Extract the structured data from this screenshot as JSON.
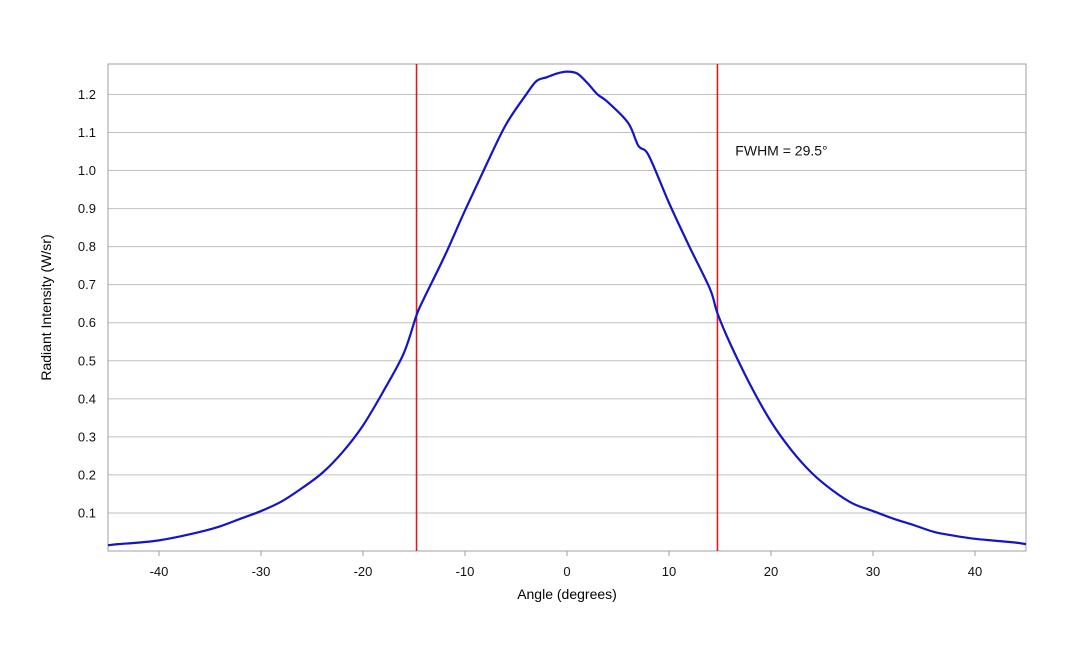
{
  "chart_data": {
    "type": "line",
    "title": "",
    "xlabel": "Angle (degrees)",
    "ylabel": "Radiant Intensity (W/sr)",
    "xlim": [
      -45,
      45
    ],
    "ylim": [
      0,
      1.28
    ],
    "xticks": [
      -40,
      -30,
      -20,
      -10,
      0,
      10,
      20,
      30,
      40
    ],
    "yticks": [
      0.1,
      0.2,
      0.3,
      0.4,
      0.5,
      0.6,
      0.7,
      0.8,
      0.9,
      1.0,
      1.1,
      1.2
    ],
    "ytick_labels": [
      "0.1",
      "0.2",
      "0.3",
      "0.4",
      "0.5",
      "0.6",
      "0.7",
      "0.8",
      "0.9",
      "1.0",
      "1.1",
      "1.2"
    ],
    "xtick_labels": [
      "-40",
      "-30",
      "-20",
      "-10",
      "0",
      "10",
      "20",
      "30",
      "40"
    ],
    "grid": "horizontal",
    "series": [
      {
        "color": "#1414c8",
        "x": [
          -45,
          -44,
          -42,
          -40,
          -38,
          -36,
          -34,
          -32,
          -30,
          -28,
          -26,
          -24,
          -22,
          -20,
          -18,
          -16,
          -14.75,
          -14,
          -12,
          -10,
          -8,
          -6,
          -4,
          -3,
          -2,
          -1,
          0,
          1,
          2,
          3,
          4,
          6,
          7,
          8,
          10,
          12,
          14,
          14.75,
          16,
          18,
          20,
          22,
          24,
          26,
          28,
          30,
          32,
          34,
          36,
          38,
          40,
          42,
          44,
          45
        ],
        "y": [
          0.015,
          0.018,
          0.022,
          0.028,
          0.038,
          0.05,
          0.065,
          0.085,
          0.105,
          0.13,
          0.165,
          0.205,
          0.26,
          0.33,
          0.42,
          0.52,
          0.62,
          0.665,
          0.775,
          0.895,
          1.01,
          1.12,
          1.2,
          1.235,
          1.245,
          1.255,
          1.26,
          1.255,
          1.23,
          1.2,
          1.18,
          1.125,
          1.065,
          1.04,
          0.915,
          0.8,
          0.69,
          0.625,
          0.545,
          0.435,
          0.34,
          0.265,
          0.205,
          0.16,
          0.125,
          0.105,
          0.085,
          0.068,
          0.05,
          0.04,
          0.032,
          0.027,
          0.022,
          0.018
        ]
      }
    ],
    "reference_lines": [
      {
        "x": -14.75,
        "color": "#d41f1f"
      },
      {
        "x": 14.75,
        "color": "#d41f1f"
      }
    ],
    "annotations": [
      {
        "text": "FWHM = 29.5°",
        "x": 16.5,
        "y": 1.04
      }
    ],
    "colors": {
      "line": "#1414c8",
      "reference": "#d41f1f",
      "grid": "#c0c0c0",
      "frame": "#a0a0a0"
    }
  }
}
